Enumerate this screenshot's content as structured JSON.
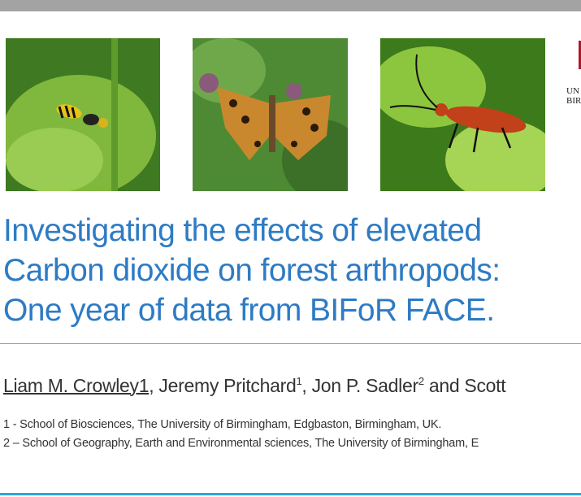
{
  "slide": {
    "title_lines": [
      "Investigating the effects of elevated",
      "Carbon dioxide on forest arthropods:",
      "One year of data from BIFoR FACE."
    ],
    "authors": {
      "lead": "Liam M. Crowley1",
      "a2_name": ", Jeremy Pritchard",
      "a2_sup": "1",
      "a3_name": ", Jon P. Sadler",
      "a3_sup": "2",
      "rest": " and Scott"
    },
    "affiliations": [
      "1 - School of Biosciences, The University of Birmingham, Edgbaston, Birmingham, UK.",
      "2 – School of Geography, Earth and Environmental sciences, The University of Birmingham, E"
    ],
    "logo_text": "UN\nBIR",
    "photos": [
      "wasp-on-leaf",
      "fritillary-butterfly",
      "red-cardinal-beetle"
    ],
    "colors": {
      "title": "#2e7bc4",
      "accent_line": "#2aa7d8",
      "logo_red": "#b0152a"
    }
  }
}
